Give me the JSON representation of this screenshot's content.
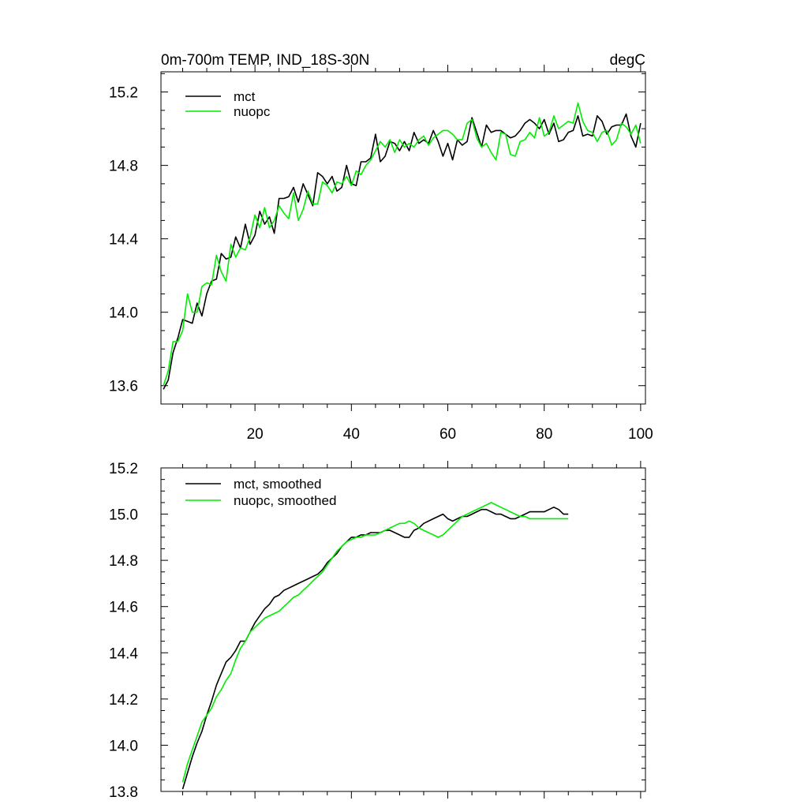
{
  "figure": {
    "title_left": "0m-700m TEMP, IND_18S-30N",
    "title_right": "degC"
  },
  "colors": {
    "mct": "#000000",
    "nuopc": "#00ee00"
  },
  "chart_data": [
    {
      "type": "line",
      "title": "0m-700m TEMP, IND_18S-30N",
      "units": "degC",
      "xlim": [
        0.5,
        101
      ],
      "ylim": [
        13.5,
        15.31
      ],
      "xticks": [
        20,
        40,
        60,
        80,
        100
      ],
      "xtick_labels": [
        "20",
        "40",
        "60",
        "80",
        "100"
      ],
      "yticks": [
        13.6,
        14.0,
        14.4,
        14.8,
        15.2
      ],
      "ytick_labels": [
        "13.6",
        "14.0",
        "14.4",
        "14.8",
        "15.2"
      ],
      "show_xtick_labels": true,
      "legend": "top-left",
      "series": [
        {
          "name": "mct",
          "color": "#000000",
          "x_start": 1,
          "values": [
            13.58,
            13.63,
            13.78,
            13.86,
            13.96,
            13.95,
            13.94,
            14.05,
            13.98,
            14.1,
            14.17,
            14.18,
            14.32,
            14.29,
            14.3,
            14.41,
            14.35,
            14.48,
            14.37,
            14.42,
            14.55,
            14.48,
            14.52,
            14.43,
            14.62,
            14.62,
            14.63,
            14.68,
            14.6,
            14.7,
            14.64,
            14.58,
            14.76,
            14.74,
            14.7,
            14.74,
            14.66,
            14.68,
            14.8,
            14.7,
            14.69,
            14.82,
            14.82,
            14.84,
            14.97,
            14.82,
            14.85,
            14.93,
            14.92,
            14.88,
            14.93,
            14.88,
            14.98,
            14.92,
            14.94,
            14.92,
            14.99,
            14.93,
            14.85,
            14.92,
            14.83,
            14.94,
            14.91,
            14.93,
            15.06,
            14.98,
            14.9,
            15.02,
            14.98,
            14.99,
            14.99,
            14.97,
            14.95,
            14.96,
            14.99,
            15.03,
            15.05,
            15.03,
            15.0,
            15.05,
            14.97,
            15.03,
            14.93,
            14.94,
            14.98,
            14.99,
            15.07,
            14.96,
            14.97,
            14.96,
            15.07,
            15.04,
            14.97,
            15.01,
            15.02,
            15.02,
            15.08,
            14.96,
            14.9,
            15.03
          ]
        },
        {
          "name": "nuopc",
          "color": "#00ee00",
          "x_start": 1,
          "values": [
            13.6,
            13.68,
            13.84,
            13.84,
            13.9,
            14.1,
            14.0,
            14.0,
            14.14,
            14.16,
            14.15,
            14.31,
            14.22,
            14.17,
            14.37,
            14.3,
            14.35,
            14.34,
            14.41,
            14.53,
            14.46,
            14.57,
            14.46,
            14.5,
            14.58,
            14.54,
            14.51,
            14.65,
            14.5,
            14.56,
            14.66,
            14.59,
            14.59,
            14.71,
            14.69,
            14.65,
            14.71,
            14.7,
            14.74,
            14.69,
            14.77,
            14.75,
            14.8,
            14.83,
            14.88,
            14.93,
            14.9,
            14.94,
            14.87,
            14.94,
            14.9,
            14.92,
            14.9,
            14.94,
            14.96,
            14.91,
            14.95,
            14.97,
            14.99,
            14.99,
            14.97,
            14.94,
            14.94,
            15.03,
            15.05,
            14.95,
            14.9,
            14.92,
            14.87,
            14.83,
            14.98,
            14.97,
            14.86,
            14.85,
            14.93,
            14.94,
            14.98,
            14.95,
            15.06,
            14.96,
            14.98,
            15.07,
            15.0,
            15.02,
            15.04,
            15.03,
            15.14,
            15.04,
            14.99,
            14.98,
            14.93,
            14.98,
            14.99,
            14.91,
            14.94,
            15.03,
            15.01,
            14.97,
            15.02,
            14.92
          ]
        }
      ]
    },
    {
      "type": "line",
      "xlim": [
        0.5,
        101
      ],
      "ylim": [
        13.8,
        15.2
      ],
      "xticks": [
        20,
        40,
        60,
        80,
        100
      ],
      "xtick_labels": [
        "20",
        "40",
        "60",
        "80",
        "100"
      ],
      "yticks": [
        13.8,
        14.0,
        14.2,
        14.4,
        14.6,
        14.8,
        15.0,
        15.2
      ],
      "ytick_labels": [
        "13.8",
        "14.0",
        "14.2",
        "14.4",
        "14.6",
        "14.8",
        "15.0",
        "15.2"
      ],
      "show_xtick_labels": false,
      "legend": "top-left",
      "series": [
        {
          "name": "mct, smoothed",
          "color": "#000000",
          "x_start": 5,
          "values": [
            13.81,
            13.88,
            13.95,
            14.01,
            14.06,
            14.13,
            14.19,
            14.26,
            14.31,
            14.36,
            14.38,
            14.41,
            14.45,
            14.45,
            14.49,
            14.53,
            14.56,
            14.59,
            14.61,
            14.64,
            14.65,
            14.67,
            14.68,
            14.69,
            14.7,
            14.71,
            14.72,
            14.73,
            14.74,
            14.76,
            14.79,
            14.81,
            14.83,
            14.86,
            14.88,
            14.9,
            14.9,
            14.91,
            14.91,
            14.92,
            14.92,
            14.92,
            14.93,
            14.93,
            14.92,
            14.91,
            14.9,
            14.9,
            14.93,
            14.94,
            14.96,
            14.97,
            14.98,
            14.99,
            15.0,
            14.98,
            14.97,
            14.98,
            14.99,
            14.99,
            15.0,
            15.01,
            15.02,
            15.02,
            15.01,
            15.0,
            15.0,
            14.99,
            14.98,
            14.98,
            14.99,
            15.0,
            15.01,
            15.01,
            15.01,
            15.01,
            15.02,
            15.03,
            15.02,
            15.0,
            15.0
          ]
        },
        {
          "name": "nuopc, smoothed",
          "color": "#00ee00",
          "x_start": 5,
          "values": [
            13.84,
            13.92,
            13.98,
            14.04,
            14.1,
            14.13,
            14.16,
            14.21,
            14.24,
            14.28,
            14.31,
            14.37,
            14.42,
            14.45,
            14.49,
            14.51,
            14.53,
            14.55,
            14.56,
            14.57,
            14.58,
            14.6,
            14.62,
            14.64,
            14.65,
            14.67,
            14.69,
            14.71,
            14.73,
            14.75,
            14.78,
            14.81,
            14.84,
            14.86,
            14.88,
            14.89,
            14.9,
            14.9,
            14.91,
            14.91,
            14.91,
            14.92,
            14.93,
            14.94,
            14.95,
            14.96,
            14.96,
            14.97,
            14.96,
            14.94,
            14.93,
            14.92,
            14.91,
            14.9,
            14.91,
            14.93,
            14.95,
            14.97,
            14.99,
            15.0,
            15.01,
            15.02,
            15.03,
            15.04,
            15.05,
            15.04,
            15.03,
            15.02,
            15.01,
            15.0,
            14.99,
            14.99,
            14.98,
            14.98,
            14.98,
            14.98,
            14.98,
            14.98,
            14.98,
            14.98,
            14.98
          ]
        }
      ]
    }
  ]
}
